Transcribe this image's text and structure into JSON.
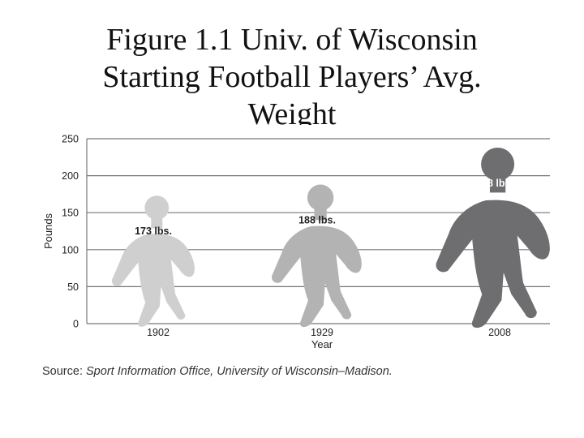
{
  "title_lines": [
    "Figure 1.1 Univ. of Wisconsin",
    "Starting Football Players’ Avg.",
    "Weight"
  ],
  "source": {
    "label": "Source:",
    "text": "Sport Information Office, University of Wisconsin–Madison."
  },
  "chart_data": {
    "type": "bar",
    "categories": [
      "1902",
      "1929",
      "2008"
    ],
    "values": [
      173,
      188,
      238
    ],
    "data_labels": [
      "173 lbs.",
      "188 lbs.",
      "238 lbs."
    ],
    "xlabel": "Year",
    "ylabel": "Pounds",
    "ylim": [
      0,
      250
    ],
    "yticks": [
      0,
      50,
      100,
      150,
      200,
      250
    ],
    "grid": true,
    "colors": [
      "#cfcfcf",
      "#b3b3b3",
      "#6e6e70"
    ],
    "grid_color": "#777777"
  }
}
